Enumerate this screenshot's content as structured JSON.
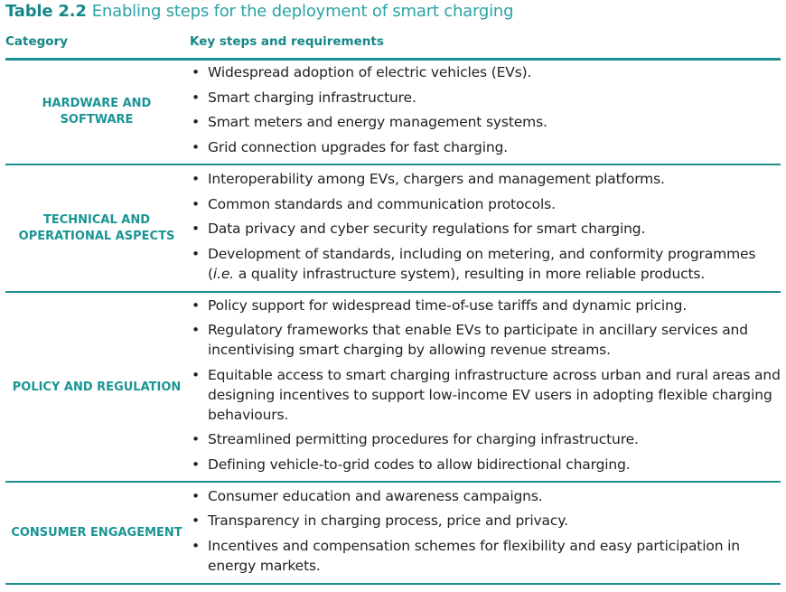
{
  "title": {
    "label": "Table 2.2",
    "text": "Enabling steps for the deployment of smart charging"
  },
  "header": {
    "category": "Category",
    "steps": "Key steps and requirements"
  },
  "rows": [
    {
      "category": "HARDWARE AND SOFTWARE",
      "items": [
        "Widespread adoption of electric vehicles (EVs).",
        "Smart charging infrastructure.",
        "Smart meters and energy management systems.",
        "Grid connection upgrades for fast charging."
      ]
    },
    {
      "category": "TECHNICAL AND OPERATIONAL ASPECTS",
      "items": [
        "Interoperability among EVs, chargers and management platforms.",
        "Common standards and communication protocols.",
        "Data privacy and cyber security regulations for smart charging.",
        "Development of standards, including on metering, and conformity programmes (i.e. a quality infrastructure system), resulting in more reliable products."
      ]
    },
    {
      "category": "POLICY AND REGULATION",
      "items": [
        "Policy support for widespread time-of-use tariffs and dynamic pricing.",
        "Regulatory frameworks that enable EVs to participate in ancillary services and incentivising smart charging by allowing revenue streams.",
        "Equitable access to smart charging infrastructure across urban and rural areas and designing incentives to support low-income EV users in adopting flexible charging behaviours.",
        "Streamlined permitting procedures for charging infrastructure.",
        "Defining vehicle-to-grid codes to allow bidirectional charging."
      ]
    },
    {
      "category": "CONSUMER ENGAGEMENT",
      "items": [
        "Consumer education and awareness campaigns.",
        "Transparency in charging process, price and privacy.",
        "Incentives and compensation schemes for flexibility and easy participation in energy markets."
      ]
    }
  ]
}
